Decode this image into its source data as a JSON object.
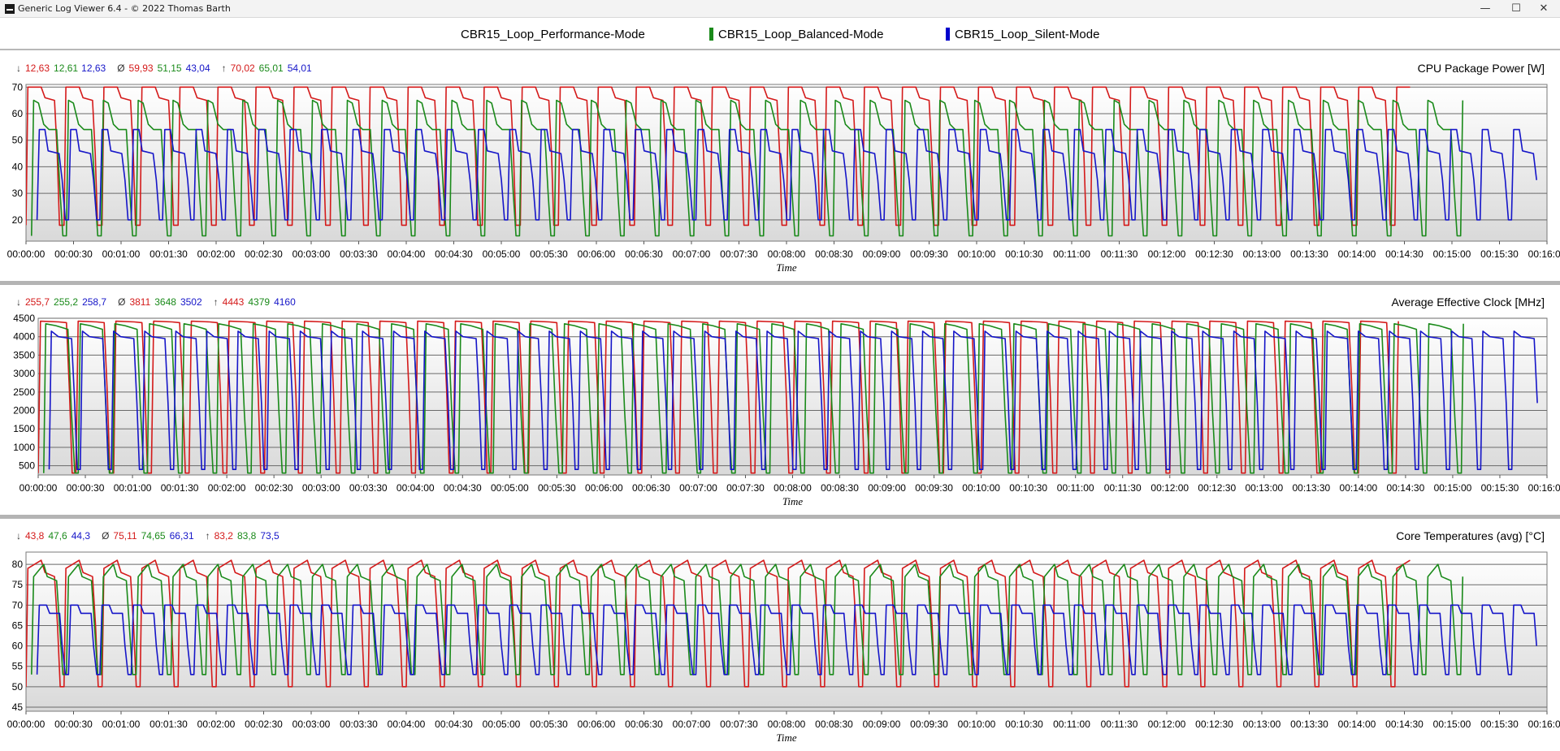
{
  "window": {
    "title": "Generic Log Viewer 6.4 - © 2022 Thomas Barth",
    "min_glyph": "—",
    "max_glyph": "☐",
    "close_glyph": "✕"
  },
  "legend": [
    {
      "name": "CBR15_Loop_Performance-Mode",
      "color": "#000000",
      "swatch": false
    },
    {
      "name": "CBR15_Loop_Balanced-Mode",
      "color": "#1a8a1a",
      "swatch": true
    },
    {
      "name": "CBR15_Loop_Silent-Mode",
      "color": "#0000cc",
      "swatch": true
    }
  ],
  "colors": {
    "performance": "#d41a1a",
    "balanced": "#1a8a1a",
    "silent": "#1515c8"
  },
  "stat_symbols": {
    "min": "↓",
    "avg": "Ø",
    "max": "↑"
  },
  "x_axis": {
    "label": "Time",
    "ticks": [
      "00:00:00",
      "00:00:30",
      "00:01:00",
      "00:01:30",
      "00:02:00",
      "00:02:30",
      "00:03:00",
      "00:03:30",
      "00:04:00",
      "00:04:30",
      "00:05:00",
      "00:05:30",
      "00:06:00",
      "00:06:30",
      "00:07:00",
      "00:07:30",
      "00:08:00",
      "00:08:30",
      "00:09:00",
      "00:09:30",
      "00:10:00",
      "00:10:30",
      "00:11:00",
      "00:11:30",
      "00:12:00",
      "00:12:30",
      "00:13:00",
      "00:13:30",
      "00:14:00",
      "00:14:30",
      "00:15:00",
      "00:15:30",
      "00:16:00"
    ],
    "range_seconds": [
      0,
      960
    ]
  },
  "chart_data": [
    {
      "type": "line",
      "title": "CPU Package Power [W]",
      "ylim": [
        12,
        71
      ],
      "yticks": [
        20,
        30,
        40,
        50,
        60,
        70
      ],
      "stats": {
        "min": [
          "12,63",
          "12,61",
          "12,63"
        ],
        "avg": [
          "59,93",
          "51,15",
          "43,04"
        ],
        "max": [
          "70,02",
          "65,01",
          "54,01"
        ]
      },
      "series": [
        {
          "name": "CBR15_Loop_Performance-Mode",
          "key": "performance",
          "period_s": 24.0,
          "end_s": 875,
          "shape": [
            [
              0,
              18
            ],
            [
              0.05,
              70
            ],
            [
              0.4,
              70
            ],
            [
              0.5,
              66
            ],
            [
              0.75,
              65
            ],
            [
              0.82,
              45
            ],
            [
              0.88,
              18
            ],
            [
              1,
              18
            ]
          ]
        },
        {
          "name": "CBR15_Loop_Balanced-Mode",
          "key": "balanced",
          "period_s": 22.0,
          "end_s": 908,
          "shape": [
            [
              0,
              14
            ],
            [
              0.06,
              65
            ],
            [
              0.2,
              64
            ],
            [
              0.35,
              56
            ],
            [
              0.5,
              54
            ],
            [
              0.72,
              54
            ],
            [
              0.82,
              30
            ],
            [
              0.9,
              14
            ],
            [
              1,
              14
            ]
          ]
        },
        {
          "name": "CBR15_Loop_Silent-Mode",
          "key": "silent",
          "period_s": 19.8,
          "end_s": 955,
          "shape": [
            [
              0,
              20
            ],
            [
              0.07,
              54
            ],
            [
              0.25,
              54
            ],
            [
              0.35,
              46
            ],
            [
              0.7,
              45
            ],
            [
              0.8,
              35
            ],
            [
              0.9,
              20
            ],
            [
              1,
              20
            ]
          ]
        }
      ]
    },
    {
      "type": "line",
      "title": "Average Effective Clock [MHz]",
      "ylim": [
        250,
        4500
      ],
      "yticks": [
        500,
        1000,
        1500,
        2000,
        2500,
        3000,
        3500,
        4000,
        4500
      ],
      "stats": {
        "min": [
          "255,7",
          "255,2",
          "258,7"
        ],
        "avg": [
          "3811",
          "3648",
          "3502"
        ],
        "max": [
          "4443",
          "4379",
          "4160"
        ]
      },
      "series": [
        {
          "name": "CBR15_Loop_Performance-Mode",
          "key": "performance",
          "period_s": 24.0,
          "end_s": 875,
          "shape": [
            [
              0,
              300
            ],
            [
              0.06,
              4420
            ],
            [
              0.55,
              4400
            ],
            [
              0.75,
              4380
            ],
            [
              0.83,
              2500
            ],
            [
              0.9,
              300
            ],
            [
              1,
              300
            ]
          ]
        },
        {
          "name": "CBR15_Loop_Balanced-Mode",
          "key": "balanced",
          "period_s": 22.0,
          "end_s": 908,
          "shape": [
            [
              0,
              300
            ],
            [
              0.06,
              4350
            ],
            [
              0.35,
              4300
            ],
            [
              0.7,
              4200
            ],
            [
              0.8,
              2000
            ],
            [
              0.9,
              300
            ],
            [
              1,
              300
            ]
          ]
        },
        {
          "name": "CBR15_Loop_Silent-Mode",
          "key": "silent",
          "period_s": 19.8,
          "end_s": 955,
          "shape": [
            [
              0,
              400
            ],
            [
              0.07,
              4150
            ],
            [
              0.3,
              4000
            ],
            [
              0.72,
              3950
            ],
            [
              0.82,
              2200
            ],
            [
              0.9,
              400
            ],
            [
              1,
              400
            ]
          ]
        }
      ]
    },
    {
      "type": "line",
      "title": "Core Temperatures (avg) [°C]",
      "ylim": [
        44,
        83
      ],
      "yticks": [
        45,
        50,
        55,
        60,
        65,
        70,
        75,
        80
      ],
      "stats": {
        "min": [
          "43,8",
          "47,6",
          "44,3"
        ],
        "avg": [
          "75,11",
          "74,65",
          "66,31"
        ],
        "max": [
          "83,2",
          "83,8",
          "73,5"
        ]
      },
      "series": [
        {
          "name": "CBR15_Loop_Performance-Mode",
          "key": "performance",
          "period_s": 24.0,
          "end_s": 875,
          "shape": [
            [
              0,
              50
            ],
            [
              0.05,
              79
            ],
            [
              0.4,
              81
            ],
            [
              0.5,
              78
            ],
            [
              0.75,
              77
            ],
            [
              0.83,
              65
            ],
            [
              0.9,
              50
            ],
            [
              1,
              50
            ]
          ]
        },
        {
          "name": "CBR15_Loop_Balanced-Mode",
          "key": "balanced",
          "period_s": 22.0,
          "end_s": 908,
          "shape": [
            [
              0,
              53
            ],
            [
              0.06,
              77
            ],
            [
              0.35,
              80
            ],
            [
              0.45,
              77
            ],
            [
              0.72,
              76
            ],
            [
              0.82,
              63
            ],
            [
              0.9,
              53
            ],
            [
              1,
              53
            ]
          ]
        },
        {
          "name": "CBR15_Loop_Silent-Mode",
          "key": "silent",
          "period_s": 19.8,
          "end_s": 955,
          "shape": [
            [
              0,
              53
            ],
            [
              0.07,
              70
            ],
            [
              0.3,
              70
            ],
            [
              0.4,
              68
            ],
            [
              0.72,
              68
            ],
            [
              0.8,
              60
            ],
            [
              0.9,
              53
            ],
            [
              1,
              53
            ]
          ]
        }
      ]
    }
  ]
}
